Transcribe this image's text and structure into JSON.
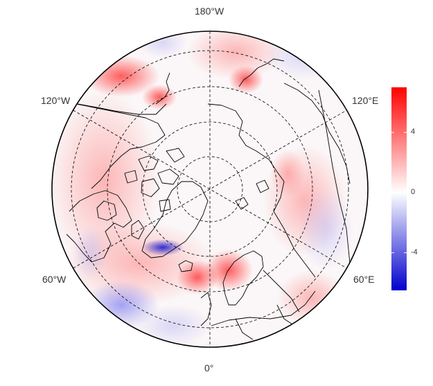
{
  "map": {
    "projection": "north-polar-stereographic",
    "longitude_labels": {
      "top": "180°W",
      "upper_left": "120°W",
      "upper_right": "120°E",
      "lower_left": "60°W",
      "lower_right": "60°E",
      "bottom": "0°"
    },
    "colormap": {
      "negative_color": "#0000cc",
      "zero_color": "#ffffff",
      "positive_color": "#ff0000"
    },
    "colorbar": {
      "range": [
        -6.5,
        7
      ],
      "ticks": [
        4,
        0,
        -4
      ],
      "tick_labels": [
        "4",
        "0",
        "-4"
      ]
    }
  }
}
